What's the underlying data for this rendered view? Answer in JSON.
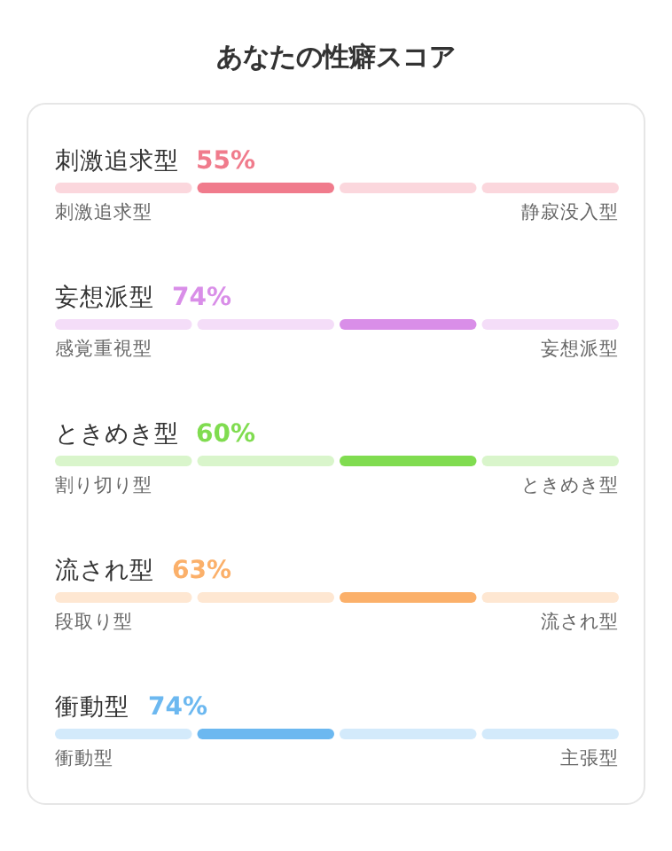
{
  "chart_data": {
    "type": "other",
    "title": "あなたの性癖スコア",
    "categories": [
      "刺激追求型",
      "妄想派型",
      "ときめき型",
      "流され型",
      "衝動型"
    ],
    "y_categories": [
      "刺激追求型",
      "感覚重視型",
      "割り切り型",
      "段取り型",
      "衝動型"
    ],
    "y2_categories": [
      "静寂没入型",
      "妄想派型",
      "ときめき型",
      "流され型",
      "主張型"
    ],
    "colors": [
      "#f07b8c",
      "#d98ee8",
      "#80dc50",
      "#fbb06a",
      "#6cb8f0"
    ],
    "series": [
      {
        "values": [
          55,
          null,
          null,
          null,
          74
        ],
        "value_labels": [
          "55%",
          null,
          null,
          null,
          "74%"
        ]
      },
      {
        "values": [
          null,
          74,
          60,
          63,
          null
        ],
        "value_labels": [
          null,
          "74%",
          "60%",
          "63%",
          null
        ]
      }
    ]
  }
}
